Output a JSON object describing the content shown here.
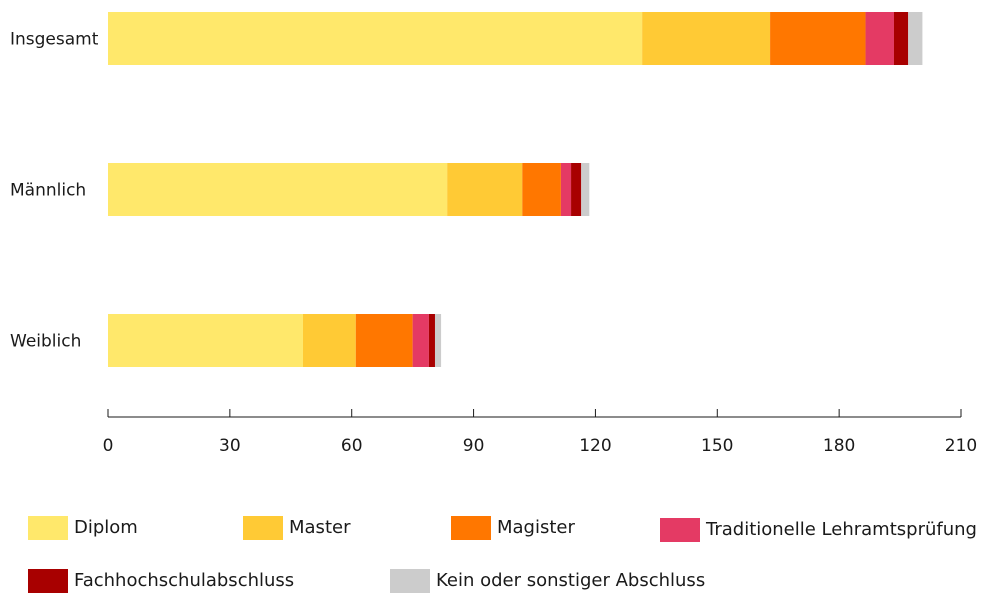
{
  "chart_data": {
    "type": "bar",
    "orientation": "horizontal",
    "stacked": true,
    "title": "",
    "xlabel": "",
    "ylabel": "",
    "xlim": [
      0,
      210
    ],
    "x_ticks": [
      0,
      30,
      60,
      90,
      120,
      150,
      180,
      210
    ],
    "grid": false,
    "legend_position": "bottom",
    "categories": [
      "Insgesamt",
      "Männlich",
      "Weiblich"
    ],
    "series": [
      {
        "name": "Diplom",
        "color": "#FFE86B",
        "values": [
          131.5,
          83.5,
          48
        ]
      },
      {
        "name": "Master",
        "color": "#FFCA35",
        "values": [
          31.5,
          18.5,
          13
        ]
      },
      {
        "name": "Magister",
        "color": "#FF7700",
        "values": [
          23.5,
          9.5,
          14
        ]
      },
      {
        "name": "Traditionelle Lehramtsprüfung",
        "color": "#E43A64",
        "values": [
          7,
          2.5,
          4
        ]
      },
      {
        "name": "Fachhochschulabschluss",
        "color": "#A80000",
        "values": [
          3.5,
          2.5,
          1.5
        ]
      },
      {
        "name": "Kein oder sonstiger Abschluss",
        "color": "#CCCCCC",
        "values": [
          3.5,
          2,
          1.5
        ]
      }
    ]
  }
}
